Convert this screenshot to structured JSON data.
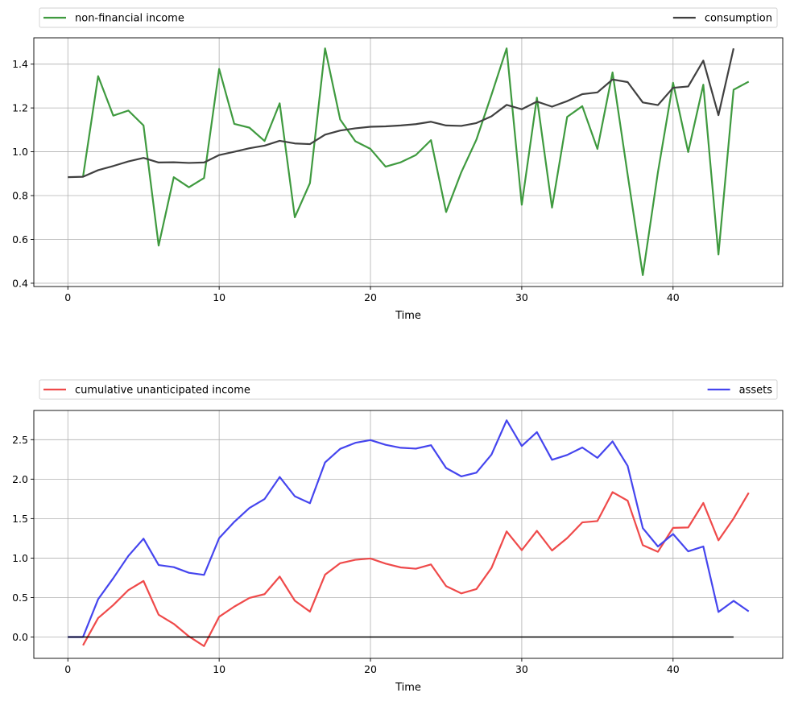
{
  "chart_data": [
    {
      "type": "line",
      "title": "",
      "xlabel": "Time",
      "ylabel": "",
      "xlim": [
        -2.25,
        47.25
      ],
      "ylim": [
        0.385,
        1.52
      ],
      "xticks": [
        0,
        10,
        20,
        30,
        40
      ],
      "yticks": [
        0.4,
        0.6,
        0.8,
        1.0,
        1.2,
        1.4
      ],
      "ytick_labels": [
        "0.4",
        "0.6",
        "0.8",
        "1.0",
        "1.2",
        "1.4"
      ],
      "grid": true,
      "legend": "top, above plot, expanded across width",
      "series": [
        {
          "name": "non-financial income",
          "color": "#3f9a3f",
          "x_start": 1,
          "values": [
            0.885,
            1.345,
            1.165,
            1.188,
            1.12,
            0.572,
            0.884,
            0.838,
            0.88,
            1.378,
            1.127,
            1.11,
            1.049,
            1.221,
            0.701,
            0.857,
            1.472,
            1.147,
            1.048,
            1.013,
            0.932,
            0.952,
            0.985,
            1.053,
            0.725,
            0.906,
            1.055,
            1.26,
            1.472,
            0.758,
            1.247,
            0.745,
            1.159,
            1.208,
            1.013,
            1.362,
            0.895,
            0.437,
            0.907,
            1.315,
            0.999,
            1.306,
            0.531,
            1.283,
            1.32
          ]
        },
        {
          "name": "consumption",
          "color": "#404040",
          "x_start": 0,
          "values": [
            0.884,
            0.886,
            0.916,
            0.935,
            0.956,
            0.972,
            0.951,
            0.952,
            0.949,
            0.951,
            0.985,
            1.0,
            1.016,
            1.028,
            1.05,
            1.038,
            1.035,
            1.078,
            1.097,
            1.107,
            1.114,
            1.116,
            1.12,
            1.126,
            1.137,
            1.12,
            1.118,
            1.131,
            1.162,
            1.214,
            1.194,
            1.229,
            1.206,
            1.231,
            1.263,
            1.271,
            1.33,
            1.318,
            1.225,
            1.213,
            1.292,
            1.298,
            1.416,
            1.167,
            1.472
          ]
        }
      ]
    },
    {
      "type": "line",
      "title": "",
      "xlabel": "Time",
      "ylabel": "",
      "xlim": [
        -2.25,
        47.25
      ],
      "ylim": [
        -0.27,
        2.87
      ],
      "xticks": [
        0,
        10,
        20,
        30,
        40
      ],
      "yticks": [
        0.0,
        0.5,
        1.0,
        1.5,
        2.0,
        2.5
      ],
      "ytick_labels": [
        "0.0",
        "0.5",
        "1.0",
        "1.5",
        "2.0",
        "2.5"
      ],
      "grid": true,
      "legend": "top, above plot, expanded across width",
      "series": [
        {
          "name": "cumulative unanticipated income",
          "color": "#ef4a4a",
          "x_start": 1,
          "values": [
            -0.105,
            0.24,
            0.405,
            0.595,
            0.71,
            0.282,
            0.167,
            0.008,
            -0.115,
            0.257,
            0.385,
            0.495,
            0.543,
            0.766,
            0.46,
            0.322,
            0.79,
            0.935,
            0.978,
            0.995,
            0.93,
            0.882,
            0.865,
            0.919,
            0.645,
            0.553,
            0.607,
            0.875,
            1.338,
            1.1,
            1.345,
            1.096,
            1.253,
            1.452,
            1.469,
            1.835,
            1.727,
            1.164,
            1.08,
            1.383,
            1.388,
            1.698,
            1.225,
            1.502,
            1.827
          ]
        },
        {
          "name": "assets",
          "color": "#4545ee",
          "x_start": 0,
          "values": [
            0.0,
            0.0,
            0.479,
            0.745,
            1.028,
            1.246,
            0.912,
            0.885,
            0.814,
            0.787,
            1.253,
            1.459,
            1.635,
            1.748,
            2.027,
            1.783,
            1.695,
            2.212,
            2.384,
            2.46,
            2.495,
            2.435,
            2.397,
            2.387,
            2.43,
            2.141,
            2.035,
            2.082,
            2.311,
            2.745,
            2.42,
            2.596,
            2.245,
            2.306,
            2.401,
            2.27,
            2.478,
            2.167,
            1.38,
            1.147,
            1.305,
            1.085,
            1.147,
            0.317,
            0.458,
            0.325
          ]
        },
        {
          "name": "",
          "color": "#000000",
          "x_start": 0,
          "values": [
            0,
            0,
            0,
            0,
            0,
            0,
            0,
            0,
            0,
            0,
            0,
            0,
            0,
            0,
            0,
            0,
            0,
            0,
            0,
            0,
            0,
            0,
            0,
            0,
            0,
            0,
            0,
            0,
            0,
            0,
            0,
            0,
            0,
            0,
            0,
            0,
            0,
            0,
            0,
            0,
            0,
            0,
            0,
            0,
            0
          ]
        }
      ]
    }
  ]
}
